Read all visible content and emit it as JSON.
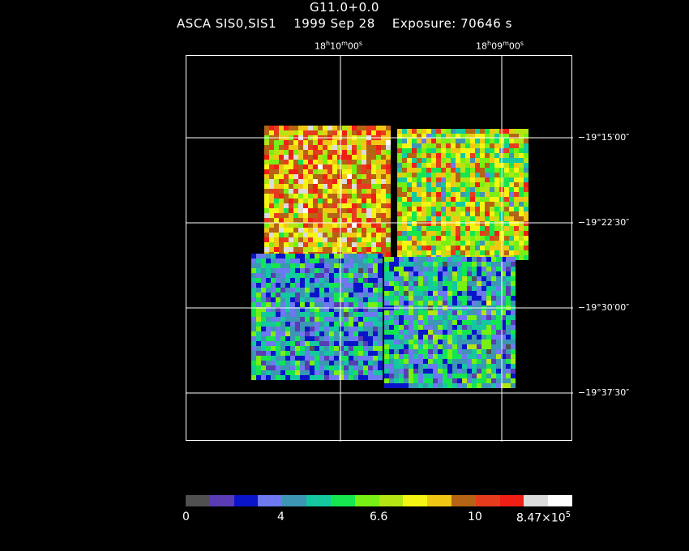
{
  "header": {
    "object": "G11.0+0.0",
    "instrument": "ASCA SIS0,SIS1",
    "date": "1999 Sep 28",
    "exposure": "Exposure: 70646 s"
  },
  "ra_labels": [
    {
      "h": "18",
      "m": "10",
      "s": "00"
    },
    {
      "h": "18",
      "m": "09",
      "s": "00"
    }
  ],
  "dec_labels": [
    "−19°15′00″",
    "−19°22′30″",
    "−19°30′00″",
    "−19°37′30″"
  ],
  "colorbar": {
    "colors": [
      "#505050",
      "#5a3cb4",
      "#0a14c8",
      "#6e78f0",
      "#3c96b4",
      "#14c8a0",
      "#14e650",
      "#78f014",
      "#b4e614",
      "#f5f514",
      "#f0c814",
      "#b46414",
      "#e63c1e",
      "#f01e14",
      "#dcdcdc",
      "#ffffff"
    ],
    "labels": [
      "0",
      "4",
      "6.6",
      "10",
      "8.47×10"
    ],
    "exponent": "5"
  }
}
